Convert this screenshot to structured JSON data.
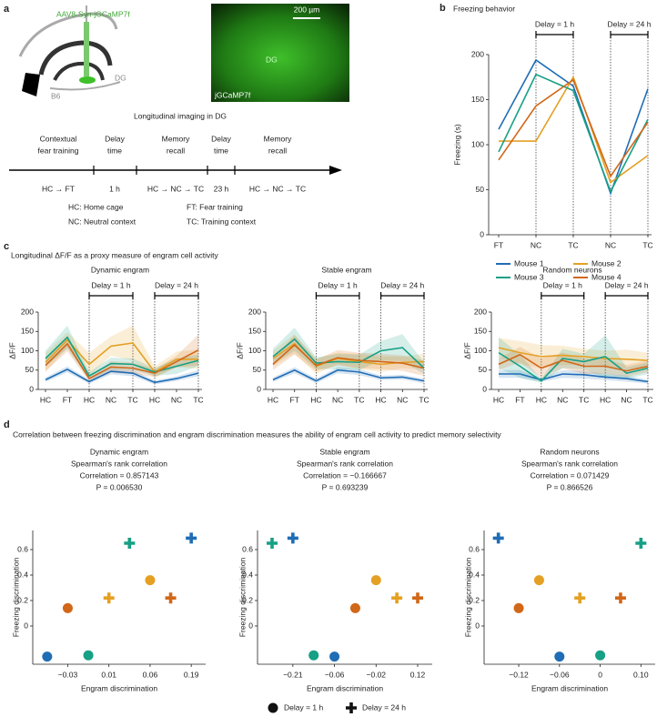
{
  "panel_a": {
    "label": "a",
    "virus": "AAV8-Syn-jGCaMP7f",
    "strain": "B6",
    "region": "DG",
    "scale_bar": "200 µm",
    "image_region": "DG",
    "image_label": "jGCaMP7f",
    "timeline_title": "Longitudinal imaging in DG",
    "stages": [
      {
        "name": [
          "Contextual",
          "fear training"
        ],
        "detail": "HC → FT"
      },
      {
        "name": [
          "Delay",
          "time"
        ],
        "detail": "1 h"
      },
      {
        "name": [
          "Memory",
          "recall"
        ],
        "detail": "HC → NC → TC"
      },
      {
        "name": [
          "Delay",
          "time"
        ],
        "detail": "23 h"
      },
      {
        "name": [
          "Memory",
          "recall"
        ],
        "detail": "HC → NC → TC"
      }
    ],
    "abbreviations": [
      "HC: Home cage",
      "NC: Neutral context",
      "FT: Fear training",
      "TC: Training context"
    ]
  },
  "panel_c": {
    "label": "c",
    "title": "Longitudinal ΔF/F as a proxy measure of engram cell activity"
  },
  "panel_d": {
    "label": "d",
    "title": "Correlation between freezing discrimination and engram discrimination measures the ability of engram cell activity to predict memory selectivity"
  },
  "chart_data": [
    {
      "type": "line",
      "panel": "b",
      "title": "Freezing behavior",
      "ylabel": "Freezing (s)",
      "categories": [
        "FT",
        "NC",
        "TC",
        "NC",
        "TC"
      ],
      "ylim": [
        0,
        200
      ],
      "yticks": [
        0,
        50,
        100,
        150,
        200
      ],
      "annotations": [
        "Delay = 1 h",
        "Delay = 24 h"
      ],
      "series": [
        {
          "name": "Mouse 1",
          "color": "#1f6db5",
          "values": [
            117,
            194,
            165,
            46,
            162
          ]
        },
        {
          "name": "Mouse 2",
          "color": "#e5a023",
          "values": [
            104,
            104,
            175,
            58,
            88
          ]
        },
        {
          "name": "Mouse 3",
          "color": "#16a085",
          "values": [
            92,
            178,
            160,
            48,
            128
          ]
        },
        {
          "name": "Mouse 4",
          "color": "#d16718",
          "values": [
            83,
            143,
            172,
            65,
            125
          ]
        }
      ]
    },
    {
      "type": "line",
      "title": "Dynamic engram",
      "ylabel": "ΔF/F",
      "categories": [
        "HC",
        "FT",
        "HC",
        "NC",
        "TC",
        "HC",
        "NC",
        "TC"
      ],
      "ylim": [
        0,
        200
      ],
      "yticks": [
        0,
        50,
        100,
        150,
        200
      ],
      "annotations": [
        "Delay = 1 h",
        "Delay = 24 h"
      ],
      "series": [
        {
          "color": "#1f6db5",
          "values": [
            25,
            52,
            20,
            47,
            42,
            18,
            28,
            42
          ],
          "errors": [
            6,
            8,
            5,
            8,
            8,
            5,
            6,
            8
          ]
        },
        {
          "color": "#e5a023",
          "values": [
            70,
            128,
            65,
            112,
            120,
            45,
            78,
            78
          ],
          "errors": [
            25,
            20,
            30,
            25,
            45,
            15,
            20,
            25
          ]
        },
        {
          "color": "#16a085",
          "values": [
            80,
            135,
            35,
            67,
            65,
            45,
            60,
            75
          ],
          "errors": [
            20,
            30,
            10,
            15,
            15,
            10,
            20,
            15
          ]
        },
        {
          "color": "#d16718",
          "values": [
            62,
            118,
            28,
            58,
            55,
            42,
            72,
            102
          ],
          "errors": [
            15,
            20,
            8,
            15,
            15,
            10,
            15,
            40
          ]
        }
      ]
    },
    {
      "type": "line",
      "title": "Stable engram",
      "ylabel": "ΔF/F",
      "categories": [
        "HC",
        "FT",
        "HC",
        "NC",
        "TC",
        "HC",
        "NC",
        "TC"
      ],
      "ylim": [
        0,
        200
      ],
      "yticks": [
        0,
        50,
        100,
        150,
        200
      ],
      "annotations": [
        "Delay = 1 h",
        "Delay = 24 h"
      ],
      "series": [
        {
          "color": "#1f6db5",
          "values": [
            25,
            50,
            22,
            50,
            45,
            30,
            32,
            22
          ],
          "errors": [
            6,
            8,
            6,
            8,
            8,
            6,
            6,
            6
          ]
        },
        {
          "color": "#e5a023",
          "values": [
            80,
            118,
            60,
            80,
            72,
            65,
            70,
            72
          ],
          "errors": [
            20,
            25,
            20,
            15,
            20,
            20,
            15,
            20
          ]
        },
        {
          "color": "#16a085",
          "values": [
            85,
            130,
            68,
            72,
            70,
            100,
            108,
            55
          ],
          "errors": [
            20,
            30,
            15,
            20,
            20,
            25,
            35,
            15
          ]
        },
        {
          "color": "#d16718",
          "values": [
            65,
            115,
            62,
            82,
            75,
            72,
            68,
            55
          ],
          "errors": [
            15,
            25,
            15,
            20,
            20,
            20,
            20,
            20
          ]
        }
      ]
    },
    {
      "type": "line",
      "title": "Random neurons",
      "ylabel": "ΔF/F",
      "categories": [
        "HC",
        "FT",
        "HC",
        "NC",
        "TC",
        "HC",
        "NC",
        "TC"
      ],
      "ylim": [
        0,
        200
      ],
      "yticks": [
        0,
        50,
        100,
        150,
        200
      ],
      "annotations": [
        "Delay = 1 h",
        "Delay = 24 h"
      ],
      "series": [
        {
          "color": "#1f6db5",
          "values": [
            40,
            40,
            25,
            40,
            38,
            32,
            28,
            20
          ],
          "errors": [
            10,
            10,
            5,
            10,
            10,
            8,
            8,
            5
          ]
        },
        {
          "color": "#e5a023",
          "values": [
            108,
            95,
            85,
            88,
            85,
            80,
            78,
            75
          ],
          "errors": [
            25,
            30,
            30,
            25,
            20,
            20,
            25,
            20
          ]
        },
        {
          "color": "#16a085",
          "values": [
            95,
            60,
            22,
            80,
            72,
            85,
            42,
            55
          ],
          "errors": [
            40,
            30,
            5,
            25,
            20,
            55,
            15,
            15
          ]
        },
        {
          "color": "#d16718",
          "values": [
            65,
            90,
            55,
            75,
            60,
            60,
            48,
            60
          ],
          "errors": [
            15,
            20,
            25,
            20,
            20,
            20,
            15,
            15
          ]
        }
      ]
    },
    {
      "type": "scatter",
      "title": "Dynamic engram",
      "test": "Spearman's rank correlation",
      "correlation": "Correlation = 0.857143",
      "p_value": "P = 0.006530",
      "xlabel": "Engram discrimination",
      "ylabel": "Freezing discrimination",
      "xlim": [
        0.3,
        8.7
      ],
      "ylim": [
        -0.3,
        0.75
      ],
      "yticks": [
        0,
        0.2,
        0.4,
        0.6
      ],
      "xticks": [
        {
          "value": 2,
          "label": "−0.03"
        },
        {
          "value": 4,
          "label": "0.01"
        },
        {
          "value": 6,
          "label": "0.06"
        },
        {
          "value": 8,
          "label": "0.19"
        }
      ],
      "series": [
        {
          "name": "Delay = 1 h",
          "marker": "circle",
          "colors": [
            "#1f6db5",
            "#e5a023",
            "#16a085",
            "#d16718"
          ],
          "x": [
            1,
            6,
            3,
            2
          ],
          "y": [
            -0.24,
            0.36,
            -0.23,
            0.14
          ]
        },
        {
          "name": "Delay = 24 h",
          "marker": "cross",
          "colors": [
            "#1f6db5",
            "#e5a023",
            "#16a085",
            "#d16718"
          ],
          "x": [
            8,
            4,
            5,
            7
          ],
          "y": [
            0.69,
            0.22,
            0.65,
            0.22
          ]
        }
      ]
    },
    {
      "type": "scatter",
      "title": "Stable engram",
      "test": "Spearman's rank correlation",
      "correlation": "Correlation = −0.166667",
      "p_value": "P = 0.693239",
      "xlabel": "Engram discrimination",
      "ylabel": "Freezing discrimination",
      "xlim": [
        0.3,
        8.7
      ],
      "ylim": [
        -0.3,
        0.75
      ],
      "yticks": [
        0,
        0.2,
        0.4,
        0.6
      ],
      "xticks": [
        {
          "value": 2,
          "label": "−0.21"
        },
        {
          "value": 4,
          "label": "−0.06"
        },
        {
          "value": 6,
          "label": "−0.02"
        },
        {
          "value": 8,
          "label": "0.12"
        }
      ],
      "series": [
        {
          "marker": "circle",
          "colors": [
            "#1f6db5",
            "#e5a023",
            "#16a085",
            "#d16718"
          ],
          "x": [
            4,
            6,
            3,
            5
          ],
          "y": [
            -0.24,
            0.36,
            -0.23,
            0.14
          ]
        },
        {
          "marker": "cross",
          "colors": [
            "#1f6db5",
            "#e5a023",
            "#16a085",
            "#d16718"
          ],
          "x": [
            2,
            7,
            1,
            8
          ],
          "y": [
            0.69,
            0.22,
            0.65,
            0.22
          ]
        }
      ]
    },
    {
      "type": "scatter",
      "title": "Random neurons",
      "test": "Spearman's rank correlation",
      "correlation": "Correlation = 0.071429",
      "p_value": "P = 0.866526",
      "xlabel": "Engram discrimination",
      "ylabel": "Freezing discrimination",
      "xlim": [
        0.3,
        8.7
      ],
      "ylim": [
        -0.3,
        0.75
      ],
      "yticks": [
        0,
        0.2,
        0.4,
        0.6
      ],
      "xticks": [
        {
          "value": 2,
          "label": "−0.12"
        },
        {
          "value": 4,
          "label": "−0.06"
        },
        {
          "value": 6,
          "label": "0"
        },
        {
          "value": 8,
          "label": "0.10"
        }
      ],
      "series": [
        {
          "marker": "circle",
          "colors": [
            "#1f6db5",
            "#e5a023",
            "#16a085",
            "#d16718"
          ],
          "x": [
            4,
            3,
            6,
            2
          ],
          "y": [
            -0.24,
            0.36,
            -0.23,
            0.14
          ]
        },
        {
          "marker": "cross",
          "colors": [
            "#1f6db5",
            "#e5a023",
            "#16a085",
            "#d16718"
          ],
          "x": [
            1,
            5,
            8,
            7
          ],
          "y": [
            0.69,
            0.22,
            0.65,
            0.22
          ]
        }
      ]
    }
  ]
}
